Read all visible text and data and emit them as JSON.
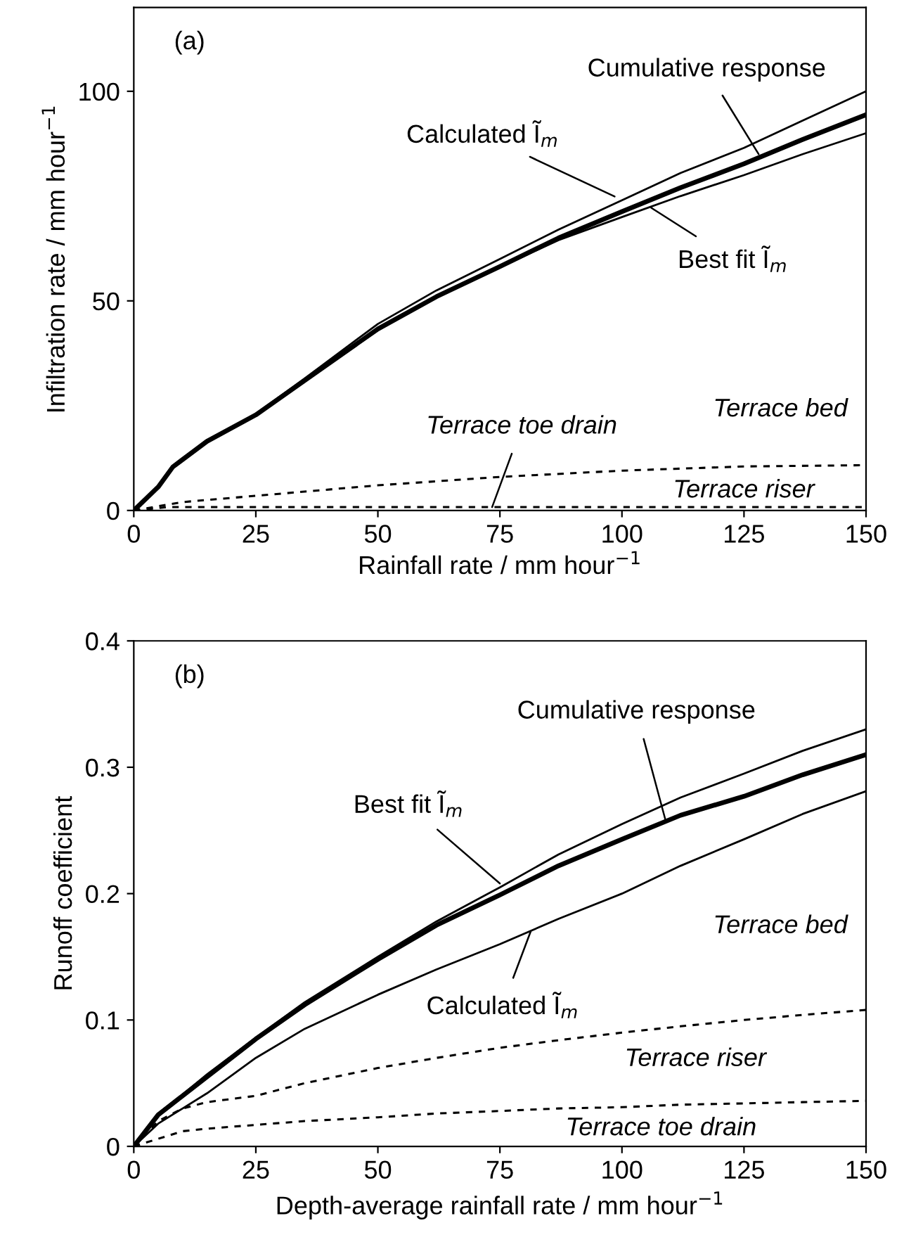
{
  "chart_data": [
    {
      "type": "line",
      "xlabel": "Rainfall rate / mm hour$^{−1}$",
      "ylabel": "Infiltration rate / mm hour$^{−1}$",
      "x": [
        0,
        5,
        8,
        15,
        25,
        35,
        50,
        62,
        75,
        87,
        100,
        112,
        125,
        137,
        150
      ],
      "xlim": [
        0,
        150
      ],
      "xticks": [
        0,
        25,
        50,
        75,
        100,
        125,
        150
      ],
      "ylim": [
        0,
        120
      ],
      "yticks": [
        0,
        50,
        100
      ],
      "grid": false,
      "legend": false,
      "series": [
        {
          "color": "#000000",
          "line_style": "solid",
          "values": [
            0,
            5.6,
            10.4,
            16.5,
            22.8,
            31,
            43.3,
            51,
            58.2,
            65,
            71.3,
            77,
            82.7,
            88.5,
            94.4
          ]
        },
        {
          "color": "#000000",
          "line_style": "solid",
          "values": [
            0,
            5.8,
            10.6,
            16.8,
            23,
            31.5,
            44.5,
            52.5,
            60,
            67,
            74,
            80.5,
            86.5,
            93,
            100
          ]
        },
        {
          "color": "#000000",
          "line_style": "solid",
          "values": [
            0,
            5.5,
            10.2,
            16.3,
            22.6,
            30.8,
            43,
            50.8,
            58,
            64.5,
            70,
            75,
            80,
            85,
            90
          ]
        },
        {
          "color": "#000000",
          "line_style": "dashed",
          "x": [
            0,
            10,
            25,
            50,
            75,
            100,
            125,
            150
          ],
          "values": [
            0,
            2,
            3.5,
            6,
            8,
            9.5,
            10.5,
            10.8
          ]
        },
        {
          "color": "#000000",
          "line_style": "dashed",
          "x": [
            0,
            7,
            25,
            50,
            75,
            100,
            125,
            150
          ],
          "values": [
            0,
            0.8,
            0.8,
            0.8,
            0.8,
            0.8,
            0.8,
            0.8
          ]
        }
      ],
      "annotations": [
        "(a)",
        {
          "text": "Cumulative response",
          "x": 128,
          "y": 85
        },
        {
          "text": "Calculated Ĩ$_{m}$",
          "x": 98.5,
          "y": 74.9
        },
        {
          "text": "Best fit Ĩ$_{m}$",
          "x": 106,
          "y": 72.2
        },
        "Terrace bed",
        {
          "text": "Terrace toe drain",
          "x": 73.4,
          "y": 0.8
        },
        "Terrace riser"
      ]
    },
    {
      "type": "line",
      "xlabel": "Depth-average rainfall rate / mm hour$^{−1}$",
      "ylabel": "Runoff coefficient",
      "x": [
        0,
        5,
        10,
        15,
        25,
        35,
        50,
        62,
        75,
        87,
        100,
        112,
        125,
        137,
        150
      ],
      "xlim": [
        0,
        150
      ],
      "xticks": [
        0,
        25,
        50,
        75,
        100,
        125,
        150
      ],
      "ylim": [
        0,
        0.4
      ],
      "yticks": [
        0,
        0.1,
        0.2,
        0.3,
        0.4
      ],
      "grid": false,
      "legend": false,
      "series": [
        {
          "color": "#000000",
          "line_style": "solid",
          "values": [
            0,
            0.025,
            0.04,
            0.055,
            0.085,
            0.112,
            0.148,
            0.175,
            0.199,
            0.222,
            0.243,
            0.262,
            0.277,
            0.294,
            0.31
          ]
        },
        {
          "color": "#000000",
          "line_style": "solid",
          "values": [
            0,
            0.026,
            0.041,
            0.057,
            0.086,
            0.114,
            0.15,
            0.178,
            0.205,
            0.231,
            0.255,
            0.276,
            0.295,
            0.313,
            0.33
          ]
        },
        {
          "color": "#000000",
          "line_style": "solid",
          "values": [
            0,
            0.018,
            0.03,
            0.042,
            0.07,
            0.093,
            0.12,
            0.14,
            0.16,
            0.18,
            0.2,
            0.222,
            0.243,
            0.263,
            0.281
          ]
        },
        {
          "color": "#000000",
          "line_style": "dashed",
          "values": [
            0,
            0.02,
            0.03,
            0.035,
            0.04,
            0.05,
            0.062,
            0.07,
            0.078,
            0.084,
            0.09,
            0.095,
            0.1,
            0.104,
            0.108
          ]
        },
        {
          "color": "#000000",
          "line_style": "dashed",
          "values": [
            0,
            0.006,
            0.012,
            0.014,
            0.017,
            0.02,
            0.023,
            0.026,
            0.028,
            0.03,
            0.031,
            0.033,
            0.034,
            0.035,
            0.036
          ]
        }
      ],
      "annotations": [
        "(b)",
        {
          "text": "Cumulative response",
          "x": 109,
          "y": 0.257
        },
        {
          "text": "Best fit Ĩ$_{m}$",
          "x": 75,
          "y": 0.208
        },
        {
          "text": "Calculated Ĩ$_{m}$",
          "x": 81.3,
          "y": 0.17
        },
        "Terrace bed",
        "Terrace riser",
        "Terrace toe drain"
      ]
    }
  ]
}
